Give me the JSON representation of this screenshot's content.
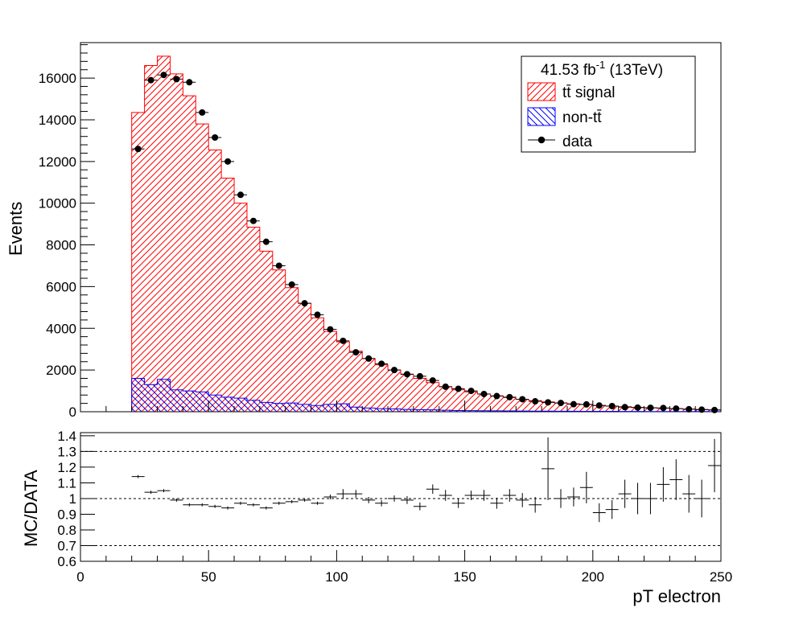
{
  "chart_data": [
    {
      "type": "bar",
      "ylabel": "Events",
      "xlim": [
        0,
        250
      ],
      "ylim": [
        0,
        17700
      ],
      "yticks": [
        0,
        2000,
        4000,
        6000,
        8000,
        10000,
        12000,
        14000,
        16000
      ],
      "bin_edges": [
        20,
        25,
        30,
        35,
        40,
        45,
        50,
        55,
        60,
        65,
        70,
        75,
        80,
        85,
        90,
        95,
        100,
        105,
        110,
        115,
        120,
        125,
        130,
        135,
        140,
        145,
        150,
        155,
        160,
        165,
        170,
        175,
        180,
        185,
        190,
        195,
        200,
        205,
        210,
        215,
        220,
        225,
        230,
        235,
        240,
        245,
        250
      ],
      "legend": {
        "luminosity_text": "41.53 fb",
        "luminosity_sup": "-1",
        "luminosity_suffix": " (13TeV)",
        "placement": "top-right"
      },
      "series": [
        {
          "name": "tt̄ signal",
          "kind": "stacked-hist",
          "color": "#ff0000",
          "values": [
            14350,
            16600,
            17050,
            16200,
            15150,
            13800,
            12550,
            11200,
            10000,
            8850,
            7700,
            6800,
            5950,
            5200,
            4500,
            3850,
            3350,
            2900,
            2550,
            2250,
            2000,
            1800,
            1600,
            1400,
            1200,
            1050,
            950,
            850,
            760,
            680,
            600,
            530,
            470,
            420,
            380,
            340,
            300,
            270,
            240,
            210,
            190,
            170,
            150,
            130,
            110,
            90
          ]
        },
        {
          "name": "non-tt̄",
          "kind": "stacked-hist",
          "color": "#0000ff",
          "values": [
            1600,
            1300,
            1550,
            1050,
            1000,
            950,
            800,
            700,
            650,
            550,
            450,
            400,
            420,
            350,
            300,
            350,
            380,
            220,
            180,
            150,
            140,
            110,
            100,
            90,
            70,
            60,
            55,
            50,
            45,
            40,
            35,
            30,
            30,
            25,
            25,
            20,
            20,
            18,
            15,
            15,
            12,
            10,
            10,
            8,
            8,
            7
          ]
        },
        {
          "name": "data",
          "kind": "points",
          "color": "#000000",
          "values": [
            12600,
            15900,
            16150,
            15950,
            15800,
            14350,
            13150,
            12000,
            10400,
            9150,
            8150,
            7000,
            6100,
            5200,
            4650,
            3950,
            3400,
            2850,
            2550,
            2300,
            2000,
            1800,
            1700,
            1500,
            1200,
            1100,
            1000,
            850,
            750,
            700,
            600,
            500,
            450,
            420,
            360,
            350,
            300,
            270,
            220,
            200,
            190,
            180,
            150,
            120,
            100,
            80
          ]
        }
      ]
    },
    {
      "type": "scatter",
      "xlabel": "pT electron",
      "ylabel": "MC/DATA",
      "xlim": [
        0,
        250
      ],
      "ylim": [
        0.6,
        1.42
      ],
      "xticks": [
        0,
        50,
        100,
        150,
        200,
        250
      ],
      "yticks": [
        0.6,
        0.7,
        0.8,
        0.9,
        1,
        1.1,
        1.2,
        1.3,
        1.4
      ],
      "ytick_labels": [
        "0.6",
        "0.7",
        "0.8",
        "0.9",
        "1",
        "1.1",
        "1.2",
        "1.3",
        "1.4"
      ],
      "reference_lines": [
        0.7,
        1.0,
        1.3
      ],
      "series": [
        {
          "name": "",
          "color": "#000000",
          "x": [
            22.5,
            27.5,
            32.5,
            37.5,
            42.5,
            47.5,
            52.5,
            57.5,
            62.5,
            67.5,
            72.5,
            77.5,
            82.5,
            87.5,
            92.5,
            97.5,
            102.5,
            107.5,
            112.5,
            117.5,
            122.5,
            127.5,
            132.5,
            137.5,
            142.5,
            147.5,
            152.5,
            157.5,
            162.5,
            167.5,
            172.5,
            177.5,
            182.5,
            187.5,
            192.5,
            197.5,
            202.5,
            207.5,
            212.5,
            217.5,
            222.5,
            227.5,
            232.5,
            237.5,
            242.5,
            247.5
          ],
          "values": [
            1.14,
            1.04,
            1.05,
            0.99,
            0.96,
            0.96,
            0.95,
            0.94,
            0.97,
            0.96,
            0.94,
            0.97,
            0.98,
            0.99,
            0.97,
            1.01,
            1.03,
            1.03,
            0.99,
            0.97,
            1.0,
            0.99,
            0.95,
            1.06,
            1.02,
            0.97,
            1.02,
            1.02,
            0.97,
            1.02,
            0.99,
            0.96,
            1.19,
            1.0,
            1.01,
            1.07,
            0.91,
            0.93,
            1.03,
            1.0,
            1.0,
            1.09,
            1.12,
            1.03,
            1.0,
            1.21
          ],
          "errors": [
            0.01,
            0.01,
            0.01,
            0.01,
            0.01,
            0.01,
            0.01,
            0.01,
            0.01,
            0.01,
            0.01,
            0.01,
            0.01,
            0.01,
            0.01,
            0.015,
            0.03,
            0.025,
            0.02,
            0.02,
            0.02,
            0.025,
            0.025,
            0.03,
            0.035,
            0.03,
            0.03,
            0.035,
            0.035,
            0.04,
            0.045,
            0.05,
            0.2,
            0.06,
            0.06,
            0.1,
            0.06,
            0.06,
            0.09,
            0.1,
            0.1,
            0.11,
            0.13,
            0.12,
            0.12,
            0.17
          ]
        }
      ]
    }
  ]
}
